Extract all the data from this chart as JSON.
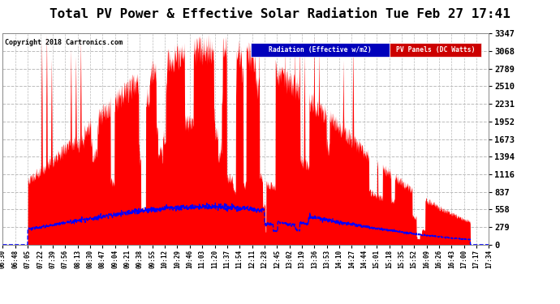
{
  "title": "Total PV Power & Effective Solar Radiation Tue Feb 27 17:41",
  "copyright": "Copyright 2018 Cartronics.com",
  "legend_labels": [
    "Radiation (Effective w/m2)",
    "PV Panels (DC Watts)"
  ],
  "legend_bg_colors": [
    "#0000bb",
    "#cc0000"
  ],
  "y_ticks": [
    0.0,
    278.9,
    557.8,
    836.7,
    1115.6,
    1394.5,
    1673.4,
    1952.3,
    2231.3,
    2510.2,
    2789.1,
    3068.0,
    3346.9
  ],
  "y_max": 3346.9,
  "background_color": "#ffffff",
  "plot_bg_color": "#ffffff",
  "grid_color": "#aaaaaa",
  "x_labels": [
    "06:30",
    "06:48",
    "07:05",
    "07:22",
    "07:39",
    "07:56",
    "08:13",
    "08:30",
    "08:47",
    "09:04",
    "09:21",
    "09:38",
    "09:55",
    "10:12",
    "10:29",
    "10:46",
    "11:03",
    "11:20",
    "11:37",
    "11:54",
    "12:11",
    "12:28",
    "12:45",
    "13:02",
    "13:19",
    "13:36",
    "13:53",
    "14:10",
    "14:27",
    "14:44",
    "15:01",
    "15:18",
    "15:35",
    "15:52",
    "16:09",
    "16:26",
    "16:43",
    "17:00",
    "17:17",
    "17:34"
  ],
  "pv_seed": 42,
  "rad_peak": 600.0,
  "pv_peak": 3346.9,
  "rad_scale_factor": 1.0
}
